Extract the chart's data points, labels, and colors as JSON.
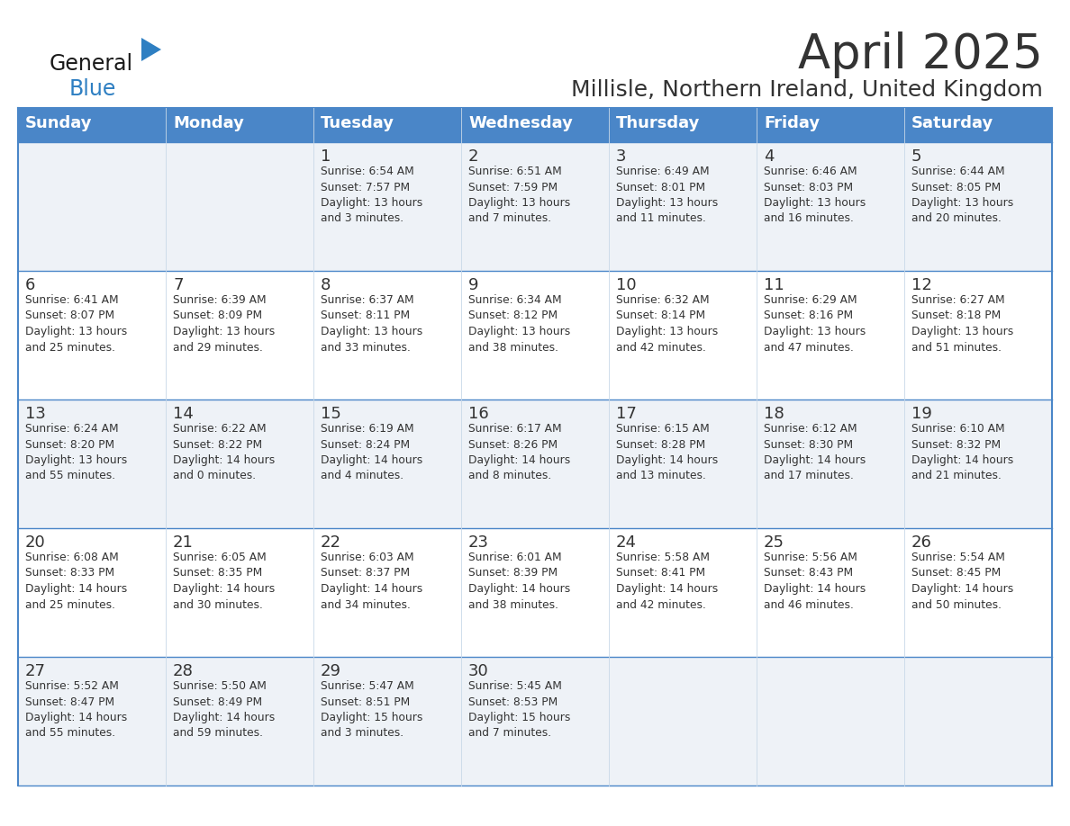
{
  "title": "April 2025",
  "subtitle": "Millisle, Northern Ireland, United Kingdom",
  "header_bg": "#4a86c8",
  "header_text": "#ffffff",
  "row_bg_even": "#eef2f7",
  "row_bg_odd": "#ffffff",
  "border_color": "#4a86c8",
  "text_color": "#333333",
  "days_of_week": [
    "Sunday",
    "Monday",
    "Tuesday",
    "Wednesday",
    "Thursday",
    "Friday",
    "Saturday"
  ],
  "weeks": [
    [
      {
        "day": "",
        "info": ""
      },
      {
        "day": "",
        "info": ""
      },
      {
        "day": "1",
        "info": "Sunrise: 6:54 AM\nSunset: 7:57 PM\nDaylight: 13 hours\nand 3 minutes."
      },
      {
        "day": "2",
        "info": "Sunrise: 6:51 AM\nSunset: 7:59 PM\nDaylight: 13 hours\nand 7 minutes."
      },
      {
        "day": "3",
        "info": "Sunrise: 6:49 AM\nSunset: 8:01 PM\nDaylight: 13 hours\nand 11 minutes."
      },
      {
        "day": "4",
        "info": "Sunrise: 6:46 AM\nSunset: 8:03 PM\nDaylight: 13 hours\nand 16 minutes."
      },
      {
        "day": "5",
        "info": "Sunrise: 6:44 AM\nSunset: 8:05 PM\nDaylight: 13 hours\nand 20 minutes."
      }
    ],
    [
      {
        "day": "6",
        "info": "Sunrise: 6:41 AM\nSunset: 8:07 PM\nDaylight: 13 hours\nand 25 minutes."
      },
      {
        "day": "7",
        "info": "Sunrise: 6:39 AM\nSunset: 8:09 PM\nDaylight: 13 hours\nand 29 minutes."
      },
      {
        "day": "8",
        "info": "Sunrise: 6:37 AM\nSunset: 8:11 PM\nDaylight: 13 hours\nand 33 minutes."
      },
      {
        "day": "9",
        "info": "Sunrise: 6:34 AM\nSunset: 8:12 PM\nDaylight: 13 hours\nand 38 minutes."
      },
      {
        "day": "10",
        "info": "Sunrise: 6:32 AM\nSunset: 8:14 PM\nDaylight: 13 hours\nand 42 minutes."
      },
      {
        "day": "11",
        "info": "Sunrise: 6:29 AM\nSunset: 8:16 PM\nDaylight: 13 hours\nand 47 minutes."
      },
      {
        "day": "12",
        "info": "Sunrise: 6:27 AM\nSunset: 8:18 PM\nDaylight: 13 hours\nand 51 minutes."
      }
    ],
    [
      {
        "day": "13",
        "info": "Sunrise: 6:24 AM\nSunset: 8:20 PM\nDaylight: 13 hours\nand 55 minutes."
      },
      {
        "day": "14",
        "info": "Sunrise: 6:22 AM\nSunset: 8:22 PM\nDaylight: 14 hours\nand 0 minutes."
      },
      {
        "day": "15",
        "info": "Sunrise: 6:19 AM\nSunset: 8:24 PM\nDaylight: 14 hours\nand 4 minutes."
      },
      {
        "day": "16",
        "info": "Sunrise: 6:17 AM\nSunset: 8:26 PM\nDaylight: 14 hours\nand 8 minutes."
      },
      {
        "day": "17",
        "info": "Sunrise: 6:15 AM\nSunset: 8:28 PM\nDaylight: 14 hours\nand 13 minutes."
      },
      {
        "day": "18",
        "info": "Sunrise: 6:12 AM\nSunset: 8:30 PM\nDaylight: 14 hours\nand 17 minutes."
      },
      {
        "day": "19",
        "info": "Sunrise: 6:10 AM\nSunset: 8:32 PM\nDaylight: 14 hours\nand 21 minutes."
      }
    ],
    [
      {
        "day": "20",
        "info": "Sunrise: 6:08 AM\nSunset: 8:33 PM\nDaylight: 14 hours\nand 25 minutes."
      },
      {
        "day": "21",
        "info": "Sunrise: 6:05 AM\nSunset: 8:35 PM\nDaylight: 14 hours\nand 30 minutes."
      },
      {
        "day": "22",
        "info": "Sunrise: 6:03 AM\nSunset: 8:37 PM\nDaylight: 14 hours\nand 34 minutes."
      },
      {
        "day": "23",
        "info": "Sunrise: 6:01 AM\nSunset: 8:39 PM\nDaylight: 14 hours\nand 38 minutes."
      },
      {
        "day": "24",
        "info": "Sunrise: 5:58 AM\nSunset: 8:41 PM\nDaylight: 14 hours\nand 42 minutes."
      },
      {
        "day": "25",
        "info": "Sunrise: 5:56 AM\nSunset: 8:43 PM\nDaylight: 14 hours\nand 46 minutes."
      },
      {
        "day": "26",
        "info": "Sunrise: 5:54 AM\nSunset: 8:45 PM\nDaylight: 14 hours\nand 50 minutes."
      }
    ],
    [
      {
        "day": "27",
        "info": "Sunrise: 5:52 AM\nSunset: 8:47 PM\nDaylight: 14 hours\nand 55 minutes."
      },
      {
        "day": "28",
        "info": "Sunrise: 5:50 AM\nSunset: 8:49 PM\nDaylight: 14 hours\nand 59 minutes."
      },
      {
        "day": "29",
        "info": "Sunrise: 5:47 AM\nSunset: 8:51 PM\nDaylight: 15 hours\nand 3 minutes."
      },
      {
        "day": "30",
        "info": "Sunrise: 5:45 AM\nSunset: 8:53 PM\nDaylight: 15 hours\nand 7 minutes."
      },
      {
        "day": "",
        "info": ""
      },
      {
        "day": "",
        "info": ""
      },
      {
        "day": "",
        "info": ""
      }
    ]
  ],
  "logo_color_general": "#1a1a1a",
  "logo_color_blue": "#2e7fc2",
  "logo_triangle_color": "#2e7fc2",
  "fig_width": 11.88,
  "fig_height": 9.18,
  "dpi": 100
}
